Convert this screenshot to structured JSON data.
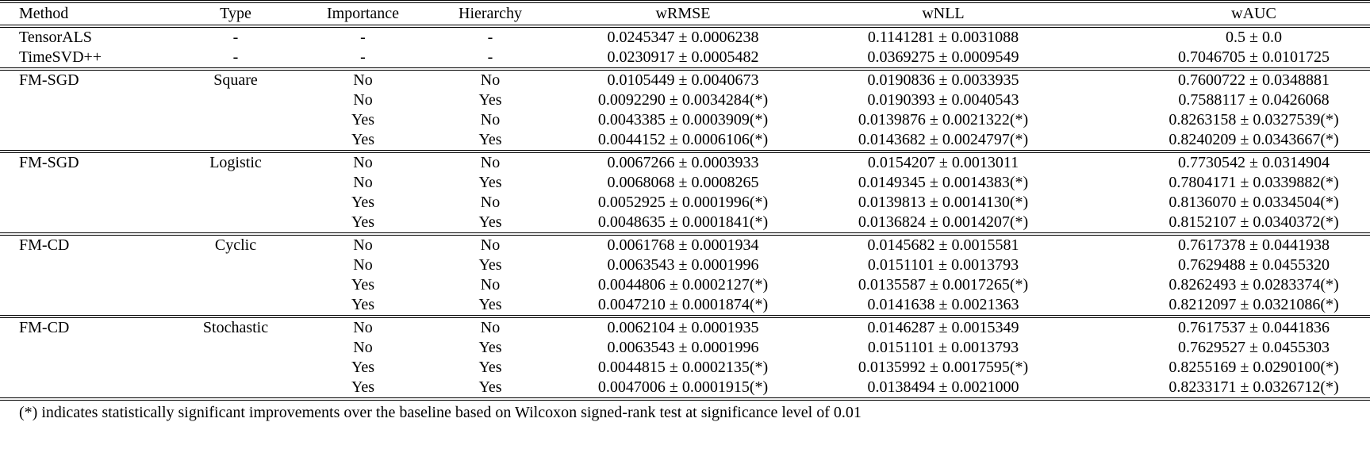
{
  "table": {
    "columns": [
      {
        "key": "method",
        "label": "Method"
      },
      {
        "key": "type",
        "label": "Type"
      },
      {
        "key": "importance",
        "label": "Importance"
      },
      {
        "key": "hierarchy",
        "label": "Hierarchy"
      },
      {
        "key": "wrmse",
        "label": "wRMSE"
      },
      {
        "key": "wnll",
        "label": "wNLL"
      },
      {
        "key": "wauc",
        "label": "wAUC"
      }
    ],
    "groups": [
      {
        "rows": [
          [
            "TensorALS",
            "-",
            "-",
            "-",
            "0.0245347 ± 0.0006238",
            "0.1141281 ± 0.0031088",
            "0.5 ± 0.0"
          ],
          [
            "TimeSVD++",
            "-",
            "-",
            "-",
            "0.0230917 ± 0.0005482",
            "0.0369275 ± 0.0009549",
            "0.7046705 ± 0.0101725"
          ]
        ]
      },
      {
        "rows": [
          [
            "FM-SGD",
            "Square",
            "No",
            "No",
            "0.0105449 ± 0.0040673",
            "0.0190836 ± 0.0033935",
            "0.7600722 ± 0.0348881"
          ],
          [
            "",
            "",
            "No",
            "Yes",
            "0.0092290 ± 0.0034284(*)",
            "0.0190393 ± 0.0040543",
            "0.7588117 ± 0.0426068"
          ],
          [
            "",
            "",
            "Yes",
            "No",
            "0.0043385 ± 0.0003909(*)",
            "0.0139876 ± 0.0021322(*)",
            "0.8263158 ± 0.0327539(*)"
          ],
          [
            "",
            "",
            "Yes",
            "Yes",
            "0.0044152 ± 0.0006106(*)",
            "0.0143682 ± 0.0024797(*)",
            "0.8240209 ± 0.0343667(*)"
          ]
        ]
      },
      {
        "rows": [
          [
            "FM-SGD",
            "Logistic",
            "No",
            "No",
            "0.0067266 ± 0.0003933",
            "0.0154207 ± 0.0013011",
            "0.7730542 ± 0.0314904"
          ],
          [
            "",
            "",
            "No",
            "Yes",
            "0.0068068 ± 0.0008265",
            "0.0149345 ± 0.0014383(*)",
            "0.7804171 ± 0.0339882(*)"
          ],
          [
            "",
            "",
            "Yes",
            "No",
            "0.0052925 ± 0.0001996(*)",
            "0.0139813 ± 0.0014130(*)",
            "0.8136070 ± 0.0334504(*)"
          ],
          [
            "",
            "",
            "Yes",
            "Yes",
            "0.0048635 ± 0.0001841(*)",
            "0.0136824 ± 0.0014207(*)",
            "0.8152107 ± 0.0340372(*)"
          ]
        ]
      },
      {
        "rows": [
          [
            "FM-CD",
            "Cyclic",
            "No",
            "No",
            "0.0061768 ± 0.0001934",
            "0.0145682 ± 0.0015581",
            "0.7617378 ± 0.0441938"
          ],
          [
            "",
            "",
            "No",
            "Yes",
            "0.0063543 ± 0.0001996",
            "0.0151101 ± 0.0013793",
            "0.7629488 ± 0.0455320"
          ],
          [
            "",
            "",
            "Yes",
            "No",
            "0.0044806 ± 0.0002127(*)",
            "0.0135587 ± 0.0017265(*)",
            "0.8262493 ± 0.0283374(*)"
          ],
          [
            "",
            "",
            "Yes",
            "Yes",
            "0.0047210 ± 0.0001874(*)",
            "0.0141638 ± 0.0021363",
            "0.8212097 ± 0.0321086(*)"
          ]
        ]
      },
      {
        "rows": [
          [
            "FM-CD",
            "Stochastic",
            "No",
            "No",
            "0.0062104 ± 0.0001935",
            "0.0146287 ± 0.0015349",
            "0.7617537 ± 0.0441836"
          ],
          [
            "",
            "",
            "No",
            "Yes",
            "0.0063543 ± 0.0001996",
            "0.0151101 ± 0.0013793",
            "0.7629527 ± 0.0455303"
          ],
          [
            "",
            "",
            "Yes",
            "Yes",
            "0.0044815 ± 0.0002135(*)",
            "0.0135992 ± 0.0017595(*)",
            "0.8255169 ± 0.0290100(*)"
          ],
          [
            "",
            "",
            "Yes",
            "Yes",
            "0.0047006 ± 0.0001915(*)",
            "0.0138494 ± 0.0021000",
            "0.8233171 ± 0.0326712(*)"
          ]
        ]
      }
    ],
    "footnote": "(*) indicates statistically significant improvements over the baseline based on Wilcoxon signed-rank test at significance level of 0.01"
  }
}
